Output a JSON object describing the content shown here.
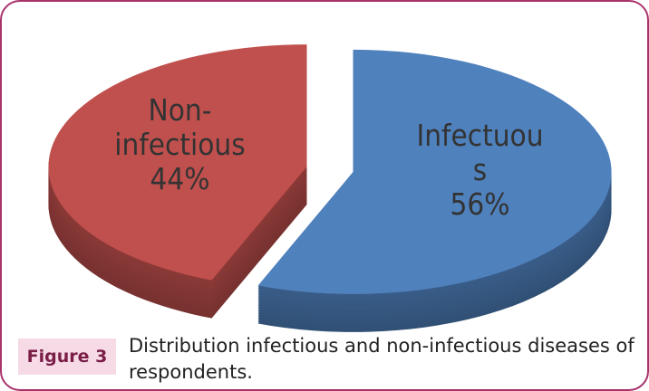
{
  "chart_data": {
    "type": "pie",
    "categories": [
      "Infectuous",
      "Non-infectious"
    ],
    "values": [
      56,
      44
    ],
    "value_labels": [
      "56%",
      "44%"
    ],
    "colors": [
      "#4f81bd",
      "#c0504d"
    ]
  },
  "caption": {
    "label": "Figure 3",
    "text": "Distribution infectious and non-infectious diseases of respondents."
  }
}
